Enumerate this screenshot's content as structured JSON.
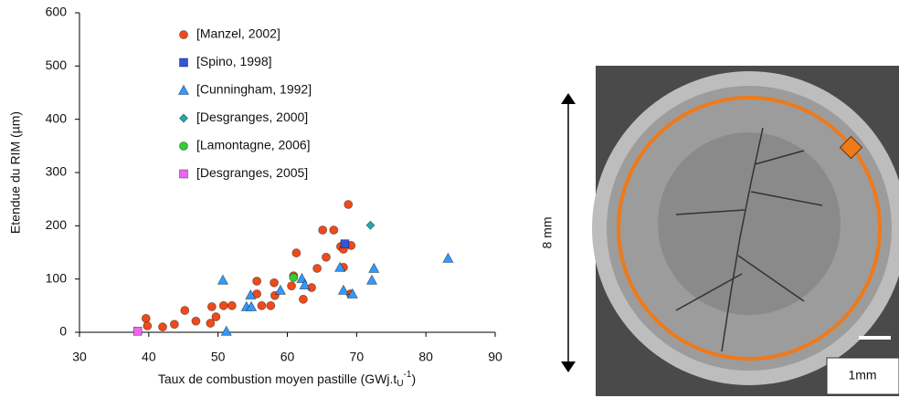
{
  "chart_data": {
    "type": "scatter",
    "xlabel": {
      "text": "Taux de combustion moyen pastille (GWj.t",
      "sub": "U",
      "sup": "-1",
      "close": ")"
    },
    "ylabel": "Etendue du RIM (µm)",
    "xlim": [
      30,
      90
    ],
    "xticks": [
      30,
      40,
      50,
      60,
      70,
      80,
      90
    ],
    "ylim": [
      0,
      600
    ],
    "yticks": [
      0,
      100,
      200,
      300,
      400,
      500,
      600
    ],
    "legend": "top-left",
    "series": [
      {
        "name": "[Manzel, 2002]",
        "color": "#f04a1a",
        "marker": "circle",
        "x": [
          39.6,
          39.8,
          42,
          43.7,
          45.2,
          46.8,
          48.9,
          49.1,
          49.7,
          50.8,
          52,
          55.6,
          55.6,
          56.3,
          57.6,
          58.2,
          58.1,
          60.6,
          60.9,
          61.3,
          62.3,
          63.5,
          64.3,
          65.1,
          65.6,
          66.7,
          67.7,
          68.1,
          68.8,
          69.2,
          69.1,
          68.1
        ],
        "values": [
          26,
          12,
          10,
          15,
          41,
          21,
          17,
          48,
          29,
          50,
          50,
          72,
          96,
          50,
          50,
          69,
          93,
          87,
          106,
          149,
          62,
          84,
          120,
          192,
          141,
          192,
          161,
          122,
          240,
          163,
          72,
          156
        ]
      },
      {
        "name": "[Spino, 1998]",
        "color": "#3355dd",
        "marker": "square",
        "x": [
          68.3
        ],
        "values": [
          166
        ]
      },
      {
        "name": "[Cunningham, 1992]",
        "color": "#3399ff",
        "marker": "triangle",
        "x": [
          50.7,
          51.2,
          54.1,
          54.8,
          54.7,
          59,
          62.1,
          62.5,
          67.6,
          68.1,
          69.4,
          72.2,
          72.5,
          83.2
        ],
        "values": [
          98,
          2,
          48,
          48,
          70,
          79,
          101,
          89,
          122,
          79,
          72,
          98,
          120,
          139
        ]
      },
      {
        "name": "[Desgranges, 2000]",
        "color": "#22aaaa",
        "marker": "diamond",
        "x": [
          72
        ],
        "values": [
          201
        ]
      },
      {
        "name": "[Lamontagne, 2006]",
        "color": "#33cc33",
        "marker": "circle",
        "x": [
          60.9
        ],
        "values": [
          103
        ]
      },
      {
        "name": "[Desgranges, 2005]",
        "color": "#ee66ee",
        "marker": "square",
        "x": [
          38.4
        ],
        "values": [
          2
        ]
      }
    ]
  },
  "image": {
    "height_label": "8 mm",
    "scale_label": "1mm"
  }
}
